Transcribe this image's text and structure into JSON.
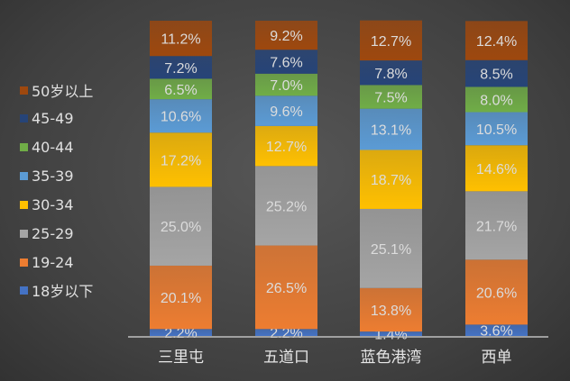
{
  "chart_data": {
    "type": "bar",
    "stacked": true,
    "categories": [
      "三里屯",
      "五道口",
      "蓝色港湾",
      "西单"
    ],
    "ylim": [
      0,
      100
    ],
    "legend_position": "left",
    "grid": false,
    "series": [
      {
        "name": "18岁以下",
        "color": "#4472c4",
        "values": [
          2.2,
          2.2,
          1.4,
          3.6
        ]
      },
      {
        "name": "19-24",
        "color": "#ed7d31",
        "values": [
          20.1,
          26.5,
          13.8,
          20.6
        ]
      },
      {
        "name": "25-29",
        "color": "#a5a5a5",
        "values": [
          25.0,
          25.2,
          25.1,
          21.7
        ]
      },
      {
        "name": "30-34",
        "color": "#ffc000",
        "values": [
          17.2,
          12.7,
          18.7,
          14.6
        ]
      },
      {
        "name": "35-39",
        "color": "#5b9bd5",
        "values": [
          10.6,
          9.6,
          13.1,
          10.5
        ]
      },
      {
        "name": "40-44",
        "color": "#70ad47",
        "values": [
          6.5,
          7.0,
          7.5,
          8.0
        ]
      },
      {
        "name": "45-49",
        "color": "#264478",
        "values": [
          7.2,
          7.6,
          7.8,
          8.5
        ]
      },
      {
        "name": "50岁以上",
        "color": "#9e480e",
        "values": [
          11.2,
          9.2,
          12.7,
          12.4
        ]
      }
    ]
  }
}
